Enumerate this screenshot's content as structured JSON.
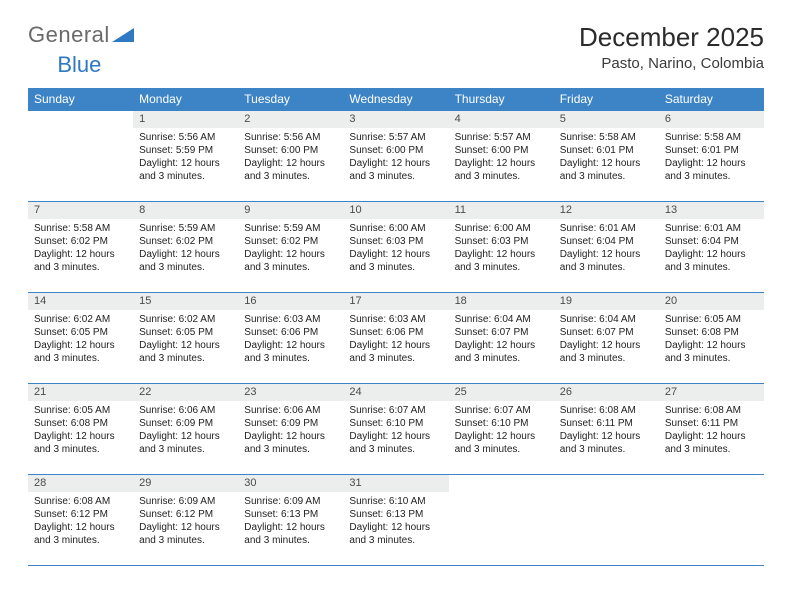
{
  "logo": {
    "text1": "General",
    "text2": "Blue"
  },
  "header": {
    "month_title": "December 2025",
    "location": "Pasto, Narino, Colombia"
  },
  "colors": {
    "header_bg": "#3c84c6",
    "header_text": "#ffffff",
    "daynum_bg": "#eceded",
    "rule": "#3c84c6",
    "logo_gray": "#6a6a6a",
    "logo_blue": "#2f78c3"
  },
  "day_names": [
    "Sunday",
    "Monday",
    "Tuesday",
    "Wednesday",
    "Thursday",
    "Friday",
    "Saturday"
  ],
  "weeks": [
    [
      null,
      {
        "n": "1",
        "sunrise": "5:56 AM",
        "sunset": "5:59 PM",
        "daylight": "12 hours and 3 minutes."
      },
      {
        "n": "2",
        "sunrise": "5:56 AM",
        "sunset": "6:00 PM",
        "daylight": "12 hours and 3 minutes."
      },
      {
        "n": "3",
        "sunrise": "5:57 AM",
        "sunset": "6:00 PM",
        "daylight": "12 hours and 3 minutes."
      },
      {
        "n": "4",
        "sunrise": "5:57 AM",
        "sunset": "6:00 PM",
        "daylight": "12 hours and 3 minutes."
      },
      {
        "n": "5",
        "sunrise": "5:58 AM",
        "sunset": "6:01 PM",
        "daylight": "12 hours and 3 minutes."
      },
      {
        "n": "6",
        "sunrise": "5:58 AM",
        "sunset": "6:01 PM",
        "daylight": "12 hours and 3 minutes."
      }
    ],
    [
      {
        "n": "7",
        "sunrise": "5:58 AM",
        "sunset": "6:02 PM",
        "daylight": "12 hours and 3 minutes."
      },
      {
        "n": "8",
        "sunrise": "5:59 AM",
        "sunset": "6:02 PM",
        "daylight": "12 hours and 3 minutes."
      },
      {
        "n": "9",
        "sunrise": "5:59 AM",
        "sunset": "6:02 PM",
        "daylight": "12 hours and 3 minutes."
      },
      {
        "n": "10",
        "sunrise": "6:00 AM",
        "sunset": "6:03 PM",
        "daylight": "12 hours and 3 minutes."
      },
      {
        "n": "11",
        "sunrise": "6:00 AM",
        "sunset": "6:03 PM",
        "daylight": "12 hours and 3 minutes."
      },
      {
        "n": "12",
        "sunrise": "6:01 AM",
        "sunset": "6:04 PM",
        "daylight": "12 hours and 3 minutes."
      },
      {
        "n": "13",
        "sunrise": "6:01 AM",
        "sunset": "6:04 PM",
        "daylight": "12 hours and 3 minutes."
      }
    ],
    [
      {
        "n": "14",
        "sunrise": "6:02 AM",
        "sunset": "6:05 PM",
        "daylight": "12 hours and 3 minutes."
      },
      {
        "n": "15",
        "sunrise": "6:02 AM",
        "sunset": "6:05 PM",
        "daylight": "12 hours and 3 minutes."
      },
      {
        "n": "16",
        "sunrise": "6:03 AM",
        "sunset": "6:06 PM",
        "daylight": "12 hours and 3 minutes."
      },
      {
        "n": "17",
        "sunrise": "6:03 AM",
        "sunset": "6:06 PM",
        "daylight": "12 hours and 3 minutes."
      },
      {
        "n": "18",
        "sunrise": "6:04 AM",
        "sunset": "6:07 PM",
        "daylight": "12 hours and 3 minutes."
      },
      {
        "n": "19",
        "sunrise": "6:04 AM",
        "sunset": "6:07 PM",
        "daylight": "12 hours and 3 minutes."
      },
      {
        "n": "20",
        "sunrise": "6:05 AM",
        "sunset": "6:08 PM",
        "daylight": "12 hours and 3 minutes."
      }
    ],
    [
      {
        "n": "21",
        "sunrise": "6:05 AM",
        "sunset": "6:08 PM",
        "daylight": "12 hours and 3 minutes."
      },
      {
        "n": "22",
        "sunrise": "6:06 AM",
        "sunset": "6:09 PM",
        "daylight": "12 hours and 3 minutes."
      },
      {
        "n": "23",
        "sunrise": "6:06 AM",
        "sunset": "6:09 PM",
        "daylight": "12 hours and 3 minutes."
      },
      {
        "n": "24",
        "sunrise": "6:07 AM",
        "sunset": "6:10 PM",
        "daylight": "12 hours and 3 minutes."
      },
      {
        "n": "25",
        "sunrise": "6:07 AM",
        "sunset": "6:10 PM",
        "daylight": "12 hours and 3 minutes."
      },
      {
        "n": "26",
        "sunrise": "6:08 AM",
        "sunset": "6:11 PM",
        "daylight": "12 hours and 3 minutes."
      },
      {
        "n": "27",
        "sunrise": "6:08 AM",
        "sunset": "6:11 PM",
        "daylight": "12 hours and 3 minutes."
      }
    ],
    [
      {
        "n": "28",
        "sunrise": "6:08 AM",
        "sunset": "6:12 PM",
        "daylight": "12 hours and 3 minutes."
      },
      {
        "n": "29",
        "sunrise": "6:09 AM",
        "sunset": "6:12 PM",
        "daylight": "12 hours and 3 minutes."
      },
      {
        "n": "30",
        "sunrise": "6:09 AM",
        "sunset": "6:13 PM",
        "daylight": "12 hours and 3 minutes."
      },
      {
        "n": "31",
        "sunrise": "6:10 AM",
        "sunset": "6:13 PM",
        "daylight": "12 hours and 3 minutes."
      },
      null,
      null,
      null
    ]
  ],
  "labels": {
    "sunrise_prefix": "Sunrise: ",
    "sunset_prefix": "Sunset: ",
    "daylight_prefix": "Daylight: "
  }
}
